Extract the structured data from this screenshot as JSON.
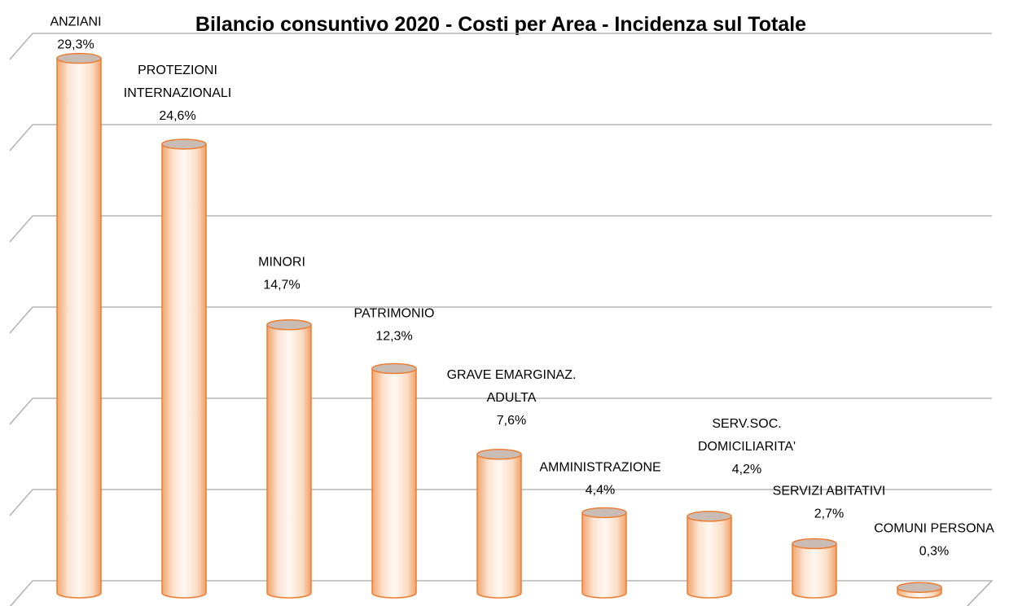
{
  "chart_data": {
    "type": "bar3d",
    "title": "Bilancio consuntivo 2020 - Costi per Area  - Incidenza sul  Totale",
    "categories": [
      "ANZIANI",
      "PROTEZIONI\nINTERNAZIONALI",
      "MINORI",
      "PATRIMONIO",
      "GRAVE EMARGINAZ.\nADULTA",
      "AMMINISTRAZIONE",
      "SERV.SOC.\nDOMICILIARITA'",
      "SERVIZI ABITATIVI",
      "COMUNI PERSONA"
    ],
    "values": [
      29.3,
      24.6,
      14.7,
      12.3,
      7.6,
      4.4,
      4.2,
      2.7,
      0.3
    ],
    "value_labels": [
      "29,3%",
      "24,6%",
      "14,7%",
      "12,3%",
      "7,6%",
      "4,4%",
      "4,2%",
      "2,7%",
      "0,3%"
    ],
    "color": "#ed7d31",
    "ylim": [
      0,
      30
    ],
    "yticks": [
      0,
      5,
      10,
      15,
      20,
      25,
      30
    ],
    "grid": true
  }
}
